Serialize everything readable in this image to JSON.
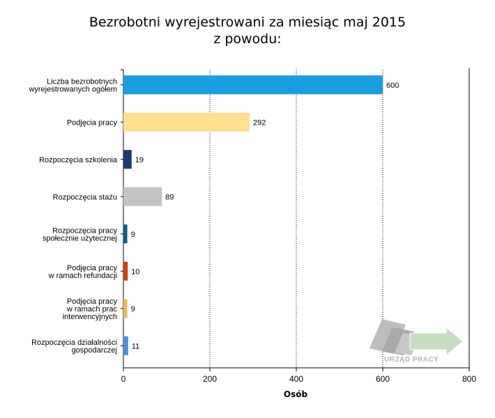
{
  "chart_data": {
    "type": "bar",
    "orientation": "horizontal",
    "title_line1": "Bezrobotni wyrejestrowani za miesiąc maj 2015",
    "title_line2": "z powodu:",
    "xlabel": "Osób",
    "ylabel": "",
    "xlim": [
      0,
      800
    ],
    "x_ticks": [
      "0",
      "200",
      "400",
      "600",
      "800"
    ],
    "grid": "vertical dotted",
    "categories": [
      [
        "Liczba bezrobotnych",
        "wyrejestrowanych ogółem"
      ],
      [
        "Podjęcia pracy"
      ],
      [
        "Rozpoczęcia szkolenia"
      ],
      [
        "Rozpoczęcia stażu"
      ],
      [
        "Rozpoczęcia pracy",
        "społecznie użytecznej"
      ],
      [
        "Podjęcia pracy",
        "w ramach refundacji"
      ],
      [
        "Podjęcia pracy",
        "w ramach prac",
        "interwencyjnych"
      ],
      [
        "Rozpoczęcia działalności",
        "gospodarczej"
      ]
    ],
    "values": [
      600,
      292,
      19,
      89,
      9,
      10,
      9,
      11
    ],
    "colors": [
      "#1a9ee0",
      "#ffe08f",
      "#1e3a6b",
      "#c3c3c3",
      "#145a8c",
      "#d43d12",
      "#f2b65a",
      "#4a8ee0"
    ]
  },
  "logo": {
    "text": "URZĄD PRACY",
    "icon": "urzad-pracy-logo-icon"
  }
}
